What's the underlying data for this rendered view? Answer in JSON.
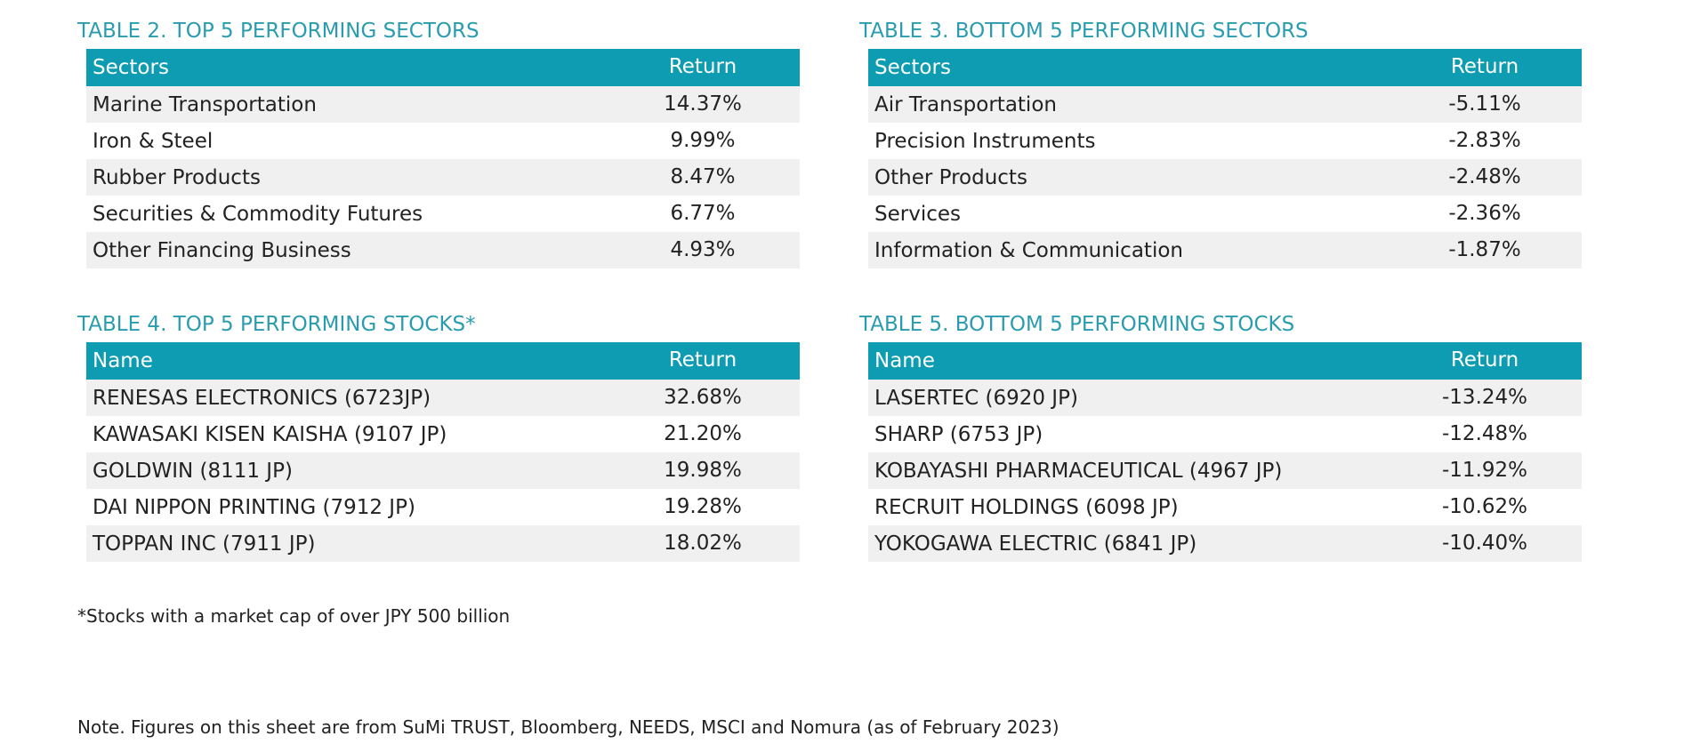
{
  "tables": [
    {
      "title": "TABLE 2. TOP 5 PERFORMING SECTORS",
      "headers": [
        "Sectors",
        "Return"
      ],
      "rows": [
        [
          "Marine Transportation",
          "14.37%"
        ],
        [
          "Iron & Steel",
          "9.99%"
        ],
        [
          "Rubber Products",
          "8.47%"
        ],
        [
          "Securities & Commodity Futures",
          "6.77%"
        ],
        [
          "Other Financing Business",
          "4.93%"
        ]
      ]
    },
    {
      "title": "TABLE 3. BOTTOM 5 PERFORMING SECTORS",
      "headers": [
        "Sectors",
        "Return"
      ],
      "rows": [
        [
          "Air Transportation",
          "-5.11%"
        ],
        [
          "Precision Instruments",
          "-2.83%"
        ],
        [
          "Other Products",
          "-2.48%"
        ],
        [
          "Services",
          "-2.36%"
        ],
        [
          "Information & Communication",
          "-1.87%"
        ]
      ]
    },
    {
      "title": "TABLE 4. TOP 5 PERFORMING STOCKS*",
      "headers": [
        "Name",
        "Return"
      ],
      "rows": [
        [
          "RENESAS ELECTRONICS (6723JP)",
          "32.68%"
        ],
        [
          "KAWASAKI KISEN KAISHA (9107 JP)",
          "21.20%"
        ],
        [
          "GOLDWIN (8111 JP)",
          "19.98%"
        ],
        [
          "DAI NIPPON PRINTING (7912 JP)",
          "19.28%"
        ],
        [
          "TOPPAN INC (7911 JP)",
          "18.02%"
        ]
      ]
    },
    {
      "title": "TABLE 5. BOTTOM 5 PERFORMING STOCKS",
      "headers": [
        "Name",
        "Return"
      ],
      "rows": [
        [
          "LASERTEC (6920 JP)",
          "-13.24%"
        ],
        [
          "SHARP (6753 JP)",
          "-12.48%"
        ],
        [
          "KOBAYASHI PHARMACEUTICAL (4967 JP)",
          "-11.92%"
        ],
        [
          "RECRUIT HOLDINGS (6098 JP)",
          "-10.62%"
        ],
        [
          "YOKOGAWA ELECTRIC (6841 JP)",
          "-10.40%"
        ]
      ]
    }
  ],
  "footnote": "*Stocks with a market cap of over JPY 500 billion",
  "note": "Note. Figures on this sheet are from SuMi TRUST, Bloomberg, NEEDS, MSCI and Nomura (as of February 2023)"
}
